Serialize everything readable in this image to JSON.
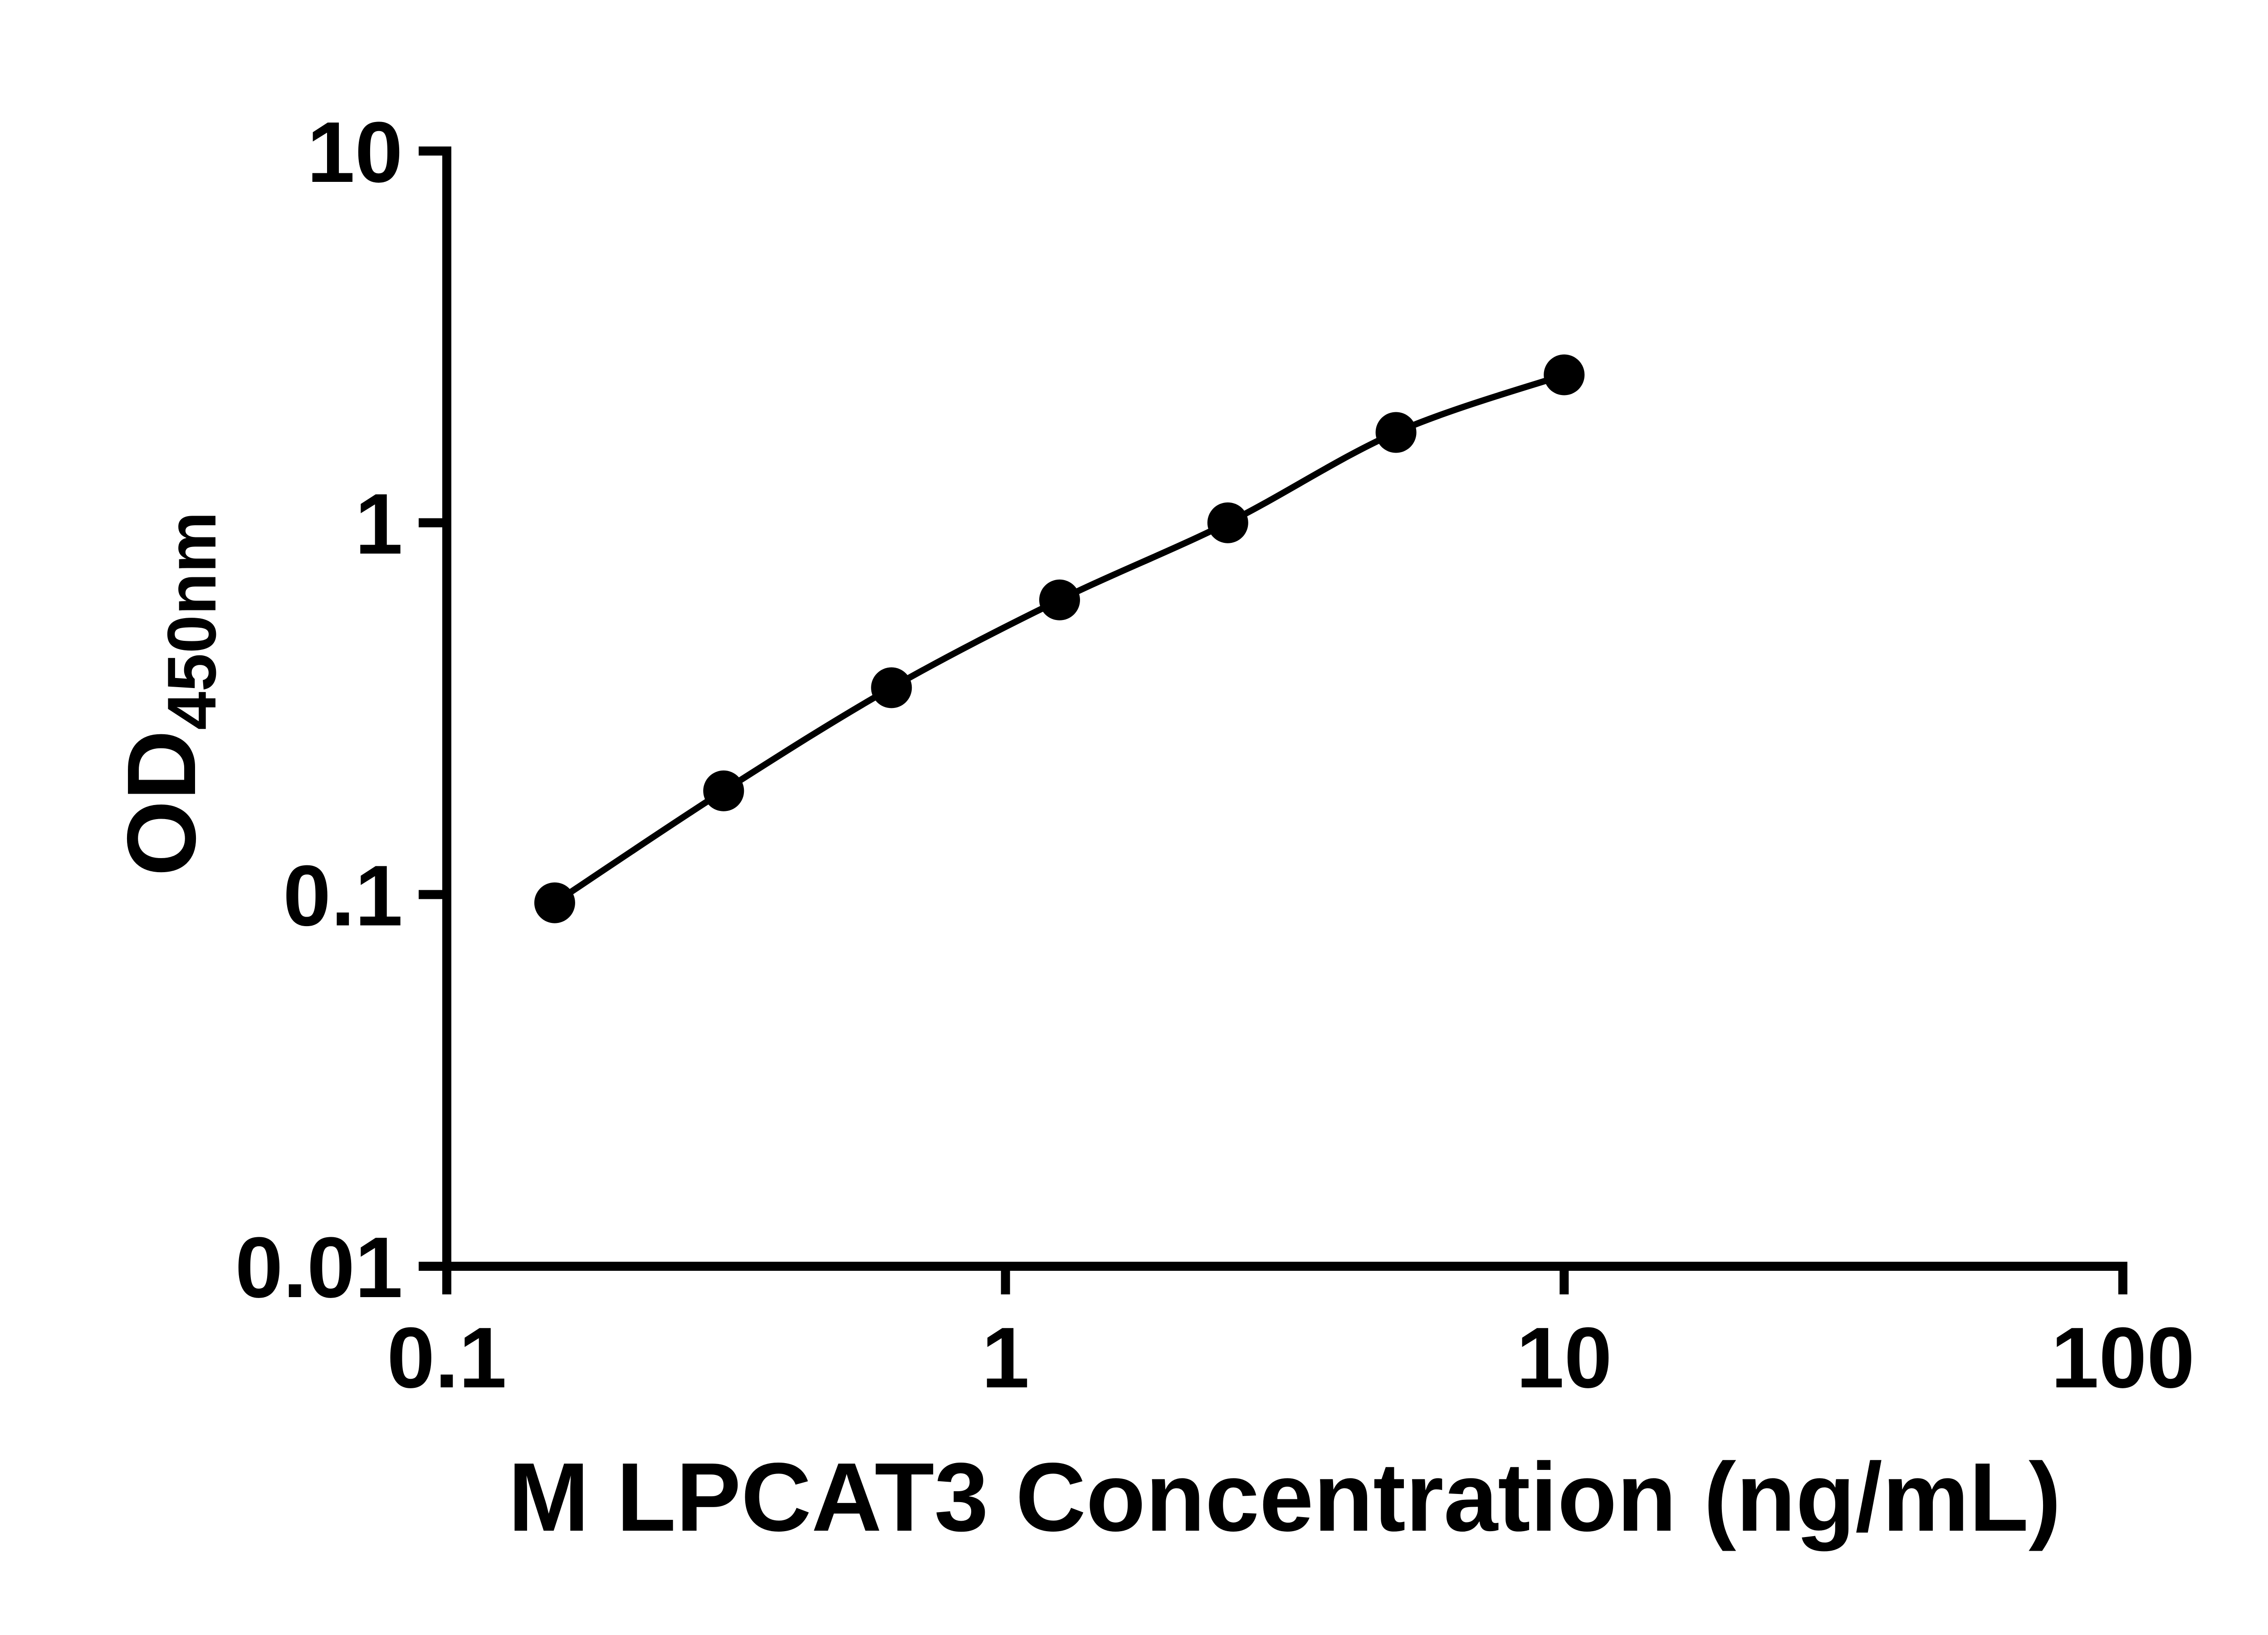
{
  "figure": {
    "description_role": "ELISA standard curve figure",
    "background_color": "#ffffff"
  },
  "colors": {
    "axis": "#000000",
    "line": "#000000",
    "marker": "#000000",
    "text": "#000000",
    "background": "#ffffff"
  },
  "chart_data": {
    "type": "line",
    "title": "",
    "xlabel": "M LPCAT3 Concentration (ng/mL)",
    "ylabel_main": "OD",
    "ylabel_sub": "450nm",
    "x_scale": "log",
    "y_scale": "log",
    "xlim": [
      0.1,
      100
    ],
    "ylim": [
      0.01,
      10
    ],
    "grid": false,
    "legend": "none",
    "x_ticks": [
      {
        "value": 0.1,
        "label": "0.1"
      },
      {
        "value": 1,
        "label": "1"
      },
      {
        "value": 10,
        "label": "10"
      },
      {
        "value": 100,
        "label": "100"
      }
    ],
    "y_ticks": [
      {
        "value": 0.01,
        "label": "0.01"
      },
      {
        "value": 0.1,
        "label": "0.1"
      },
      {
        "value": 1,
        "label": "1"
      },
      {
        "value": 10,
        "label": "10"
      }
    ],
    "series": [
      {
        "name": "M LPCAT3 standard curve",
        "marker": "circle",
        "color": "#000000",
        "x": [
          0.156,
          0.313,
          0.625,
          1.25,
          2.5,
          5,
          10
        ],
        "y": [
          0.095,
          0.19,
          0.36,
          0.62,
          1.0,
          1.75,
          2.5
        ]
      }
    ]
  }
}
